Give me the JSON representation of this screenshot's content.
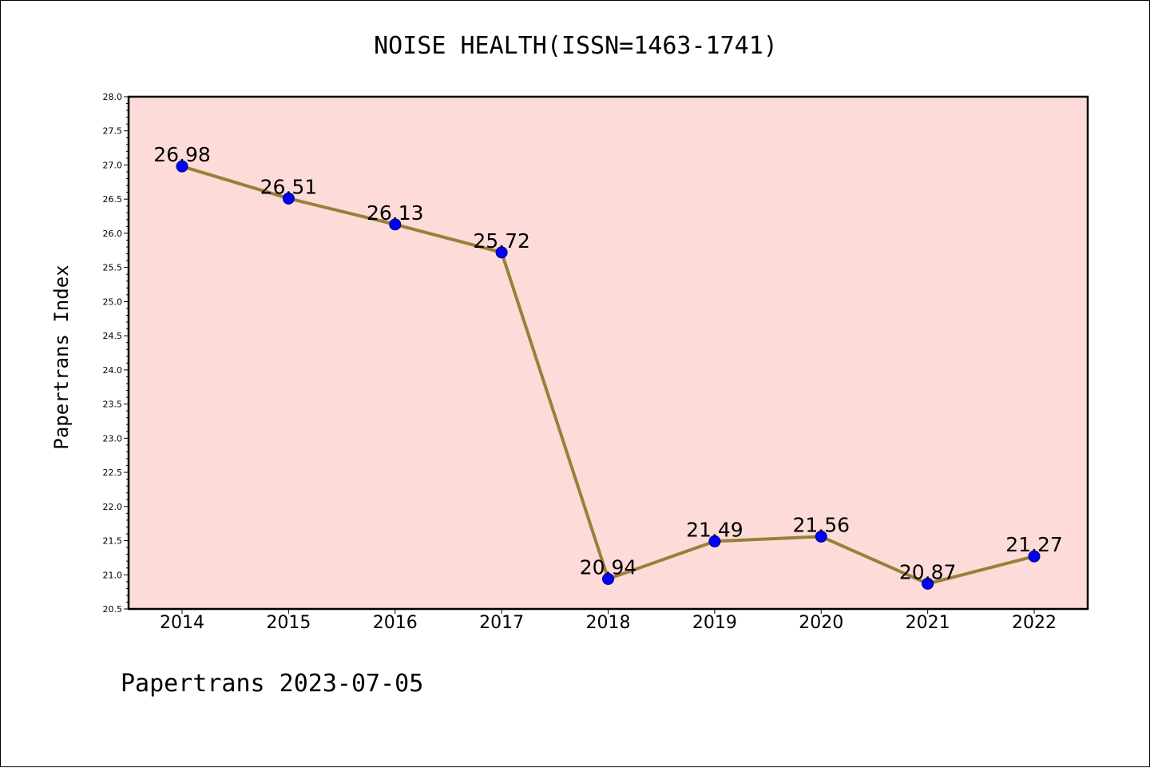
{
  "chart_data": {
    "type": "line",
    "title": "NOISE HEALTH(ISSN=1463-1741)",
    "xlabel": "",
    "ylabel": "Papertrans Index",
    "categories": [
      "2014",
      "2015",
      "2016",
      "2017",
      "2018",
      "2019",
      "2020",
      "2021",
      "2022"
    ],
    "series": [
      {
        "name": "Papertrans Index",
        "values": [
          26.98,
          26.51,
          26.13,
          25.72,
          20.94,
          21.49,
          21.56,
          20.87,
          21.27
        ],
        "labels": [
          "26.98",
          "26.51",
          "26.13",
          "25.72",
          "20.94",
          "21.49",
          "21.56",
          "20.87",
          "21.27"
        ]
      }
    ],
    "ylim": [
      20.5,
      28.0
    ],
    "yticks": [
      "20.5",
      "21.0",
      "21.5",
      "22.0",
      "22.5",
      "23.0",
      "23.5",
      "24.0",
      "24.5",
      "25.0",
      "25.5",
      "26.0",
      "26.5",
      "27.0",
      "27.5",
      "28.0"
    ],
    "grid": false,
    "footer": "Papertrans 2023-07-05",
    "colors": {
      "plot_background": "#FDDBD9",
      "line": "#97803A",
      "marker_fill": "#0000FF",
      "marker_edge": "#00007A",
      "axes": "#000000"
    }
  }
}
